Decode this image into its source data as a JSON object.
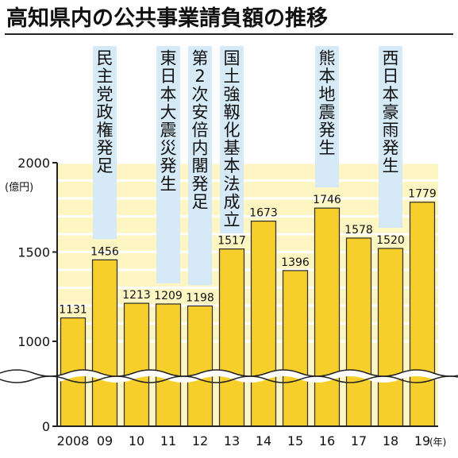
{
  "chart_data": {
    "type": "bar",
    "title": "高知県内の公共事業請負額の推移",
    "ylabel": "(億円)",
    "xlabel": "(年)",
    "ylim": [
      0,
      2000
    ],
    "y_ticks": [
      "0",
      "1000",
      "1500",
      "2000"
    ],
    "axis_break": "between 0 and 1000",
    "grid": true,
    "categories": [
      "2008",
      "09",
      "10",
      "11",
      "12",
      "13",
      "14",
      "15",
      "16",
      "17",
      "18",
      "19"
    ],
    "values": [
      1131,
      1456,
      1213,
      1209,
      1198,
      1517,
      1673,
      1396,
      1746,
      1578,
      1520,
      1779
    ],
    "value_labels": [
      "1131",
      "1456",
      "1213",
      "1209",
      "1198",
      "1517",
      "1673",
      "1396",
      "1746",
      "1578",
      "1520",
      "1779"
    ],
    "events": [
      {
        "category": "09",
        "label": "民主党政権発足"
      },
      {
        "category": "11",
        "label": "東日本大震災発生"
      },
      {
        "category": "12",
        "label": "第2次安倍内閣発足"
      },
      {
        "category": "13",
        "label": "国土強靱化基本法成立"
      },
      {
        "category": "16",
        "label": "熊本地震発生"
      },
      {
        "category": "18",
        "label": "西日本豪雨発生"
      }
    ],
    "colors": {
      "bar_fill": "#f7cf2a",
      "bar_stroke": "#2a2a2a",
      "plot_background": "#fdf6c3",
      "event_band": "#d6e9f6",
      "axis": "#222222",
      "text": "#111111"
    }
  }
}
